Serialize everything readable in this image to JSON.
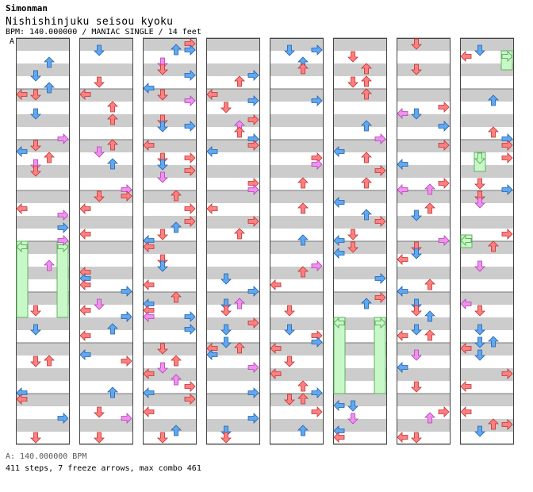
{
  "song": {
    "author": "Simonman",
    "title": "Nishishinjuku seisou kyoku",
    "info_line": "BPM: 140.000000 / MANIAC SINGLE / 14 feet",
    "bpm_marker": "A"
  },
  "footer": {
    "bpm_line": "A: 140.000000 BPM",
    "summary": "411 steps, 7 freeze arrows, max combo 461"
  },
  "chart": {
    "columns": 8,
    "measures_per_column": 8,
    "lanes": [
      "left",
      "down",
      "up",
      "right"
    ],
    "colors": {
      "quarter_note": "#ff8080",
      "eighth_note": "#60a8f0",
      "sixteenth_note": "#f090f0",
      "freeze_body": "#c8f8c8",
      "freeze_edge": "#60b060",
      "stripe": "#cccccc"
    },
    "freeze_arrows": [
      {
        "column": 1,
        "lane": "left",
        "start_beat": 16,
        "end_beat": 22
      },
      {
        "column": 1,
        "lane": "right",
        "start_beat": 16,
        "end_beat": 22
      },
      {
        "column": 6,
        "lane": "left",
        "start_beat": 22,
        "end_beat": 28
      },
      {
        "column": 6,
        "lane": "right",
        "start_beat": 22,
        "end_beat": 28
      },
      {
        "column": 8,
        "lane": "right",
        "start_beat": 1,
        "end_beat": 2.5
      },
      {
        "column": 8,
        "lane": "down",
        "start_beat": 9,
        "end_beat": 10.5
      },
      {
        "column": 8,
        "lane": "left",
        "start_beat": 15.5,
        "end_beat": 16.5
      }
    ]
  }
}
